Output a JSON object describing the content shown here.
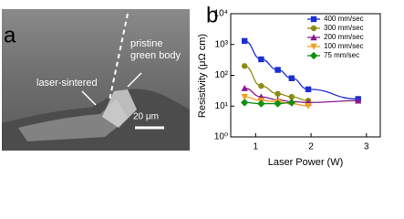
{
  "panel_labels": [
    "a",
    "b"
  ],
  "image": {
    "labels": [
      "pristine",
      "green body",
      "laser-sintered"
    ],
    "scale_bar": "20 μm"
  },
  "chart_data": {
    "type": "line",
    "x_label": "Laser Power (W)",
    "y_label": "Resistivity (μΩ cm)",
    "xlim": [
      0.55,
      3.25
    ],
    "xticks": [
      1,
      2,
      3
    ],
    "ylim": [
      1,
      10000
    ],
    "log_y": true,
    "yticks": [
      {
        "value": 1,
        "label": "10⁰"
      },
      {
        "value": 10,
        "label": "10¹"
      },
      {
        "value": 100,
        "label": "10²"
      },
      {
        "value": 1000,
        "label": "10³"
      },
      {
        "value": 10000,
        "label": "10⁴"
      }
    ],
    "legend": "upper right",
    "series": [
      {
        "name": "400 mm/sec",
        "color": "#1c2fd4",
        "marker": "square",
        "x": [
          0.8,
          1.1,
          1.4,
          1.65,
          1.95,
          2.85
        ],
        "values": [
          1300,
          330,
          150,
          80,
          35,
          17
        ]
      },
      {
        "name": "300 mm/sec",
        "color": "#8c8c14",
        "marker": "circle",
        "x": [
          0.8,
          1.1,
          1.4,
          1.65,
          1.95
        ],
        "values": [
          200,
          45,
          25,
          20,
          15
        ]
      },
      {
        "name": "200 mm/sec",
        "color": "#8b1a8b",
        "marker": "triangle-up",
        "x": [
          0.8,
          1.1,
          1.4,
          1.65,
          1.95,
          2.85
        ],
        "values": [
          38,
          20,
          16,
          14,
          13,
          15
        ]
      },
      {
        "name": "100 mm/sec",
        "color": "#f0a020",
        "marker": "triangle-down",
        "x": [
          0.8,
          1.1,
          1.4,
          1.65,
          1.95
        ],
        "values": [
          20,
          15,
          14,
          12,
          10
        ]
      },
      {
        "name": "75 mm/sec",
        "color": "#109010",
        "marker": "diamond",
        "x": [
          0.8,
          1.1,
          1.4,
          1.65
        ],
        "values": [
          13,
          12,
          12,
          13
        ]
      }
    ]
  }
}
